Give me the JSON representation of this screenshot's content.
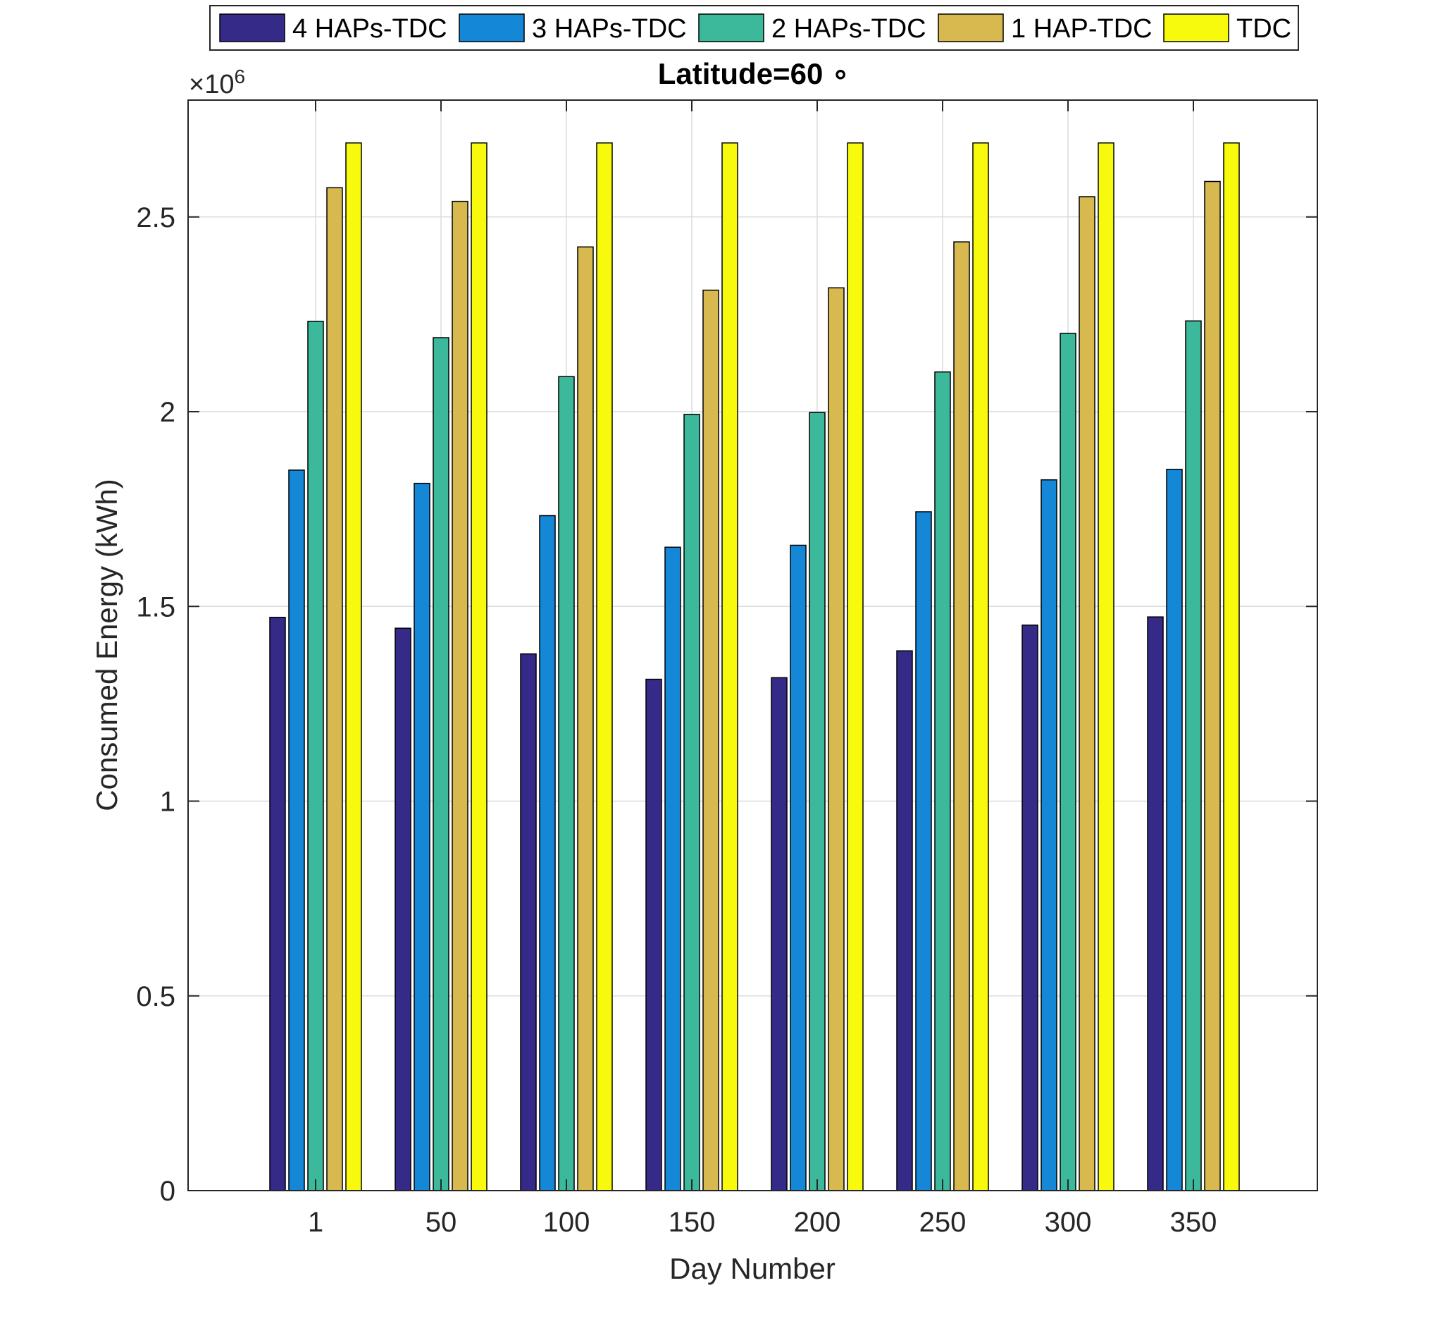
{
  "chart_data": {
    "type": "bar",
    "title": "Latitude=60 ∘",
    "xlabel": "Day Number",
    "ylabel": "Consumed Energy (kWh)",
    "y_multiplier_label": "×10",
    "y_multiplier_exponent": "6",
    "ylim": [
      0,
      2800000
    ],
    "yticks": [
      0,
      500000,
      1000000,
      1500000,
      2000000,
      2500000
    ],
    "ytick_labels": [
      "0",
      "0.5",
      "1",
      "1.5",
      "2",
      "2.5"
    ],
    "categories": [
      "1",
      "50",
      "100",
      "150",
      "200",
      "250",
      "300",
      "350"
    ],
    "grid": true,
    "legend_position": "top",
    "series": [
      {
        "name": "4 HAPs-TDC",
        "color": "#352a87",
        "values": [
          1472000,
          1444000,
          1378000,
          1313000,
          1317000,
          1386000,
          1452000,
          1473000
        ]
      },
      {
        "name": "3 HAPs-TDC",
        "color": "#1587d7",
        "values": [
          1850000,
          1816000,
          1733000,
          1652000,
          1657000,
          1743000,
          1825000,
          1852000
        ]
      },
      {
        "name": "2 HAPs-TDC",
        "color": "#3cb89b",
        "values": [
          2232000,
          2190000,
          2090000,
          1993000,
          1998000,
          2102000,
          2201000,
          2233000
        ]
      },
      {
        "name": "1 HAP-TDC",
        "color": "#d7b94f",
        "values": [
          2575000,
          2540000,
          2423000,
          2312000,
          2318000,
          2436000,
          2552000,
          2591000
        ]
      },
      {
        "name": "TDC",
        "color": "#f8fa0d",
        "values": [
          2690000,
          2690000,
          2690000,
          2690000,
          2690000,
          2690000,
          2690000,
          2690000
        ]
      }
    ]
  }
}
